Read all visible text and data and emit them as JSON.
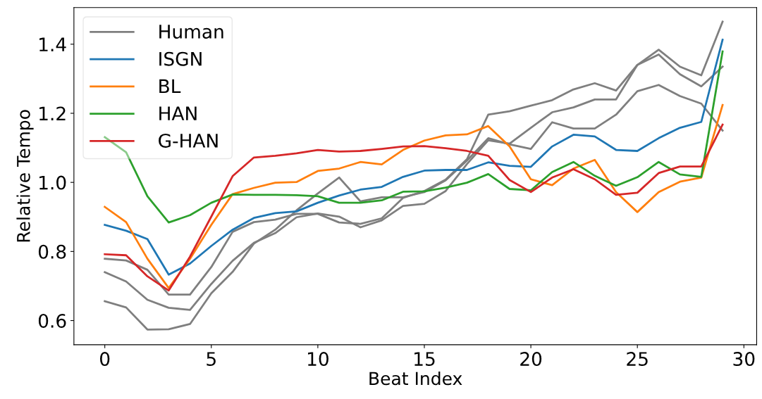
{
  "chart_data": {
    "type": "line",
    "xlabel": "Beat Index",
    "ylabel": "Relative Tempo",
    "x": [
      0,
      1,
      2,
      3,
      4,
      5,
      6,
      7,
      8,
      9,
      10,
      11,
      12,
      13,
      14,
      15,
      16,
      17,
      18,
      19,
      20,
      21,
      22,
      23,
      24,
      25,
      26,
      27,
      28,
      29
    ],
    "series": [
      {
        "name": "Human",
        "color": "#7f7f7f",
        "values": [
          0.779,
          0.774,
          0.747,
          0.675,
          0.675,
          0.755,
          0.857,
          0.885,
          0.892,
          0.909,
          0.909,
          0.884,
          0.88,
          0.896,
          0.955,
          0.975,
          1.008,
          1.067,
          1.196,
          1.206,
          1.222,
          1.238,
          1.269,
          1.287,
          1.266,
          1.34,
          1.384,
          1.335,
          1.31,
          1.465
        ]
      },
      {
        "color": "#7f7f7f",
        "values": [
          0.74,
          0.713,
          0.66,
          0.637,
          0.631,
          0.706,
          0.773,
          0.825,
          0.853,
          0.899,
          0.91,
          0.901,
          0.87,
          0.89,
          0.932,
          0.938,
          0.975,
          1.053,
          1.122,
          1.112,
          1.158,
          1.203,
          1.217,
          1.24,
          1.24,
          1.34,
          1.37,
          1.313,
          1.278,
          1.335
        ]
      },
      {
        "color": "#7f7f7f",
        "values": [
          0.656,
          0.638,
          0.574,
          0.575,
          0.59,
          0.679,
          0.741,
          0.823,
          0.863,
          0.919,
          0.968,
          1.014,
          0.945,
          0.957,
          0.957,
          0.972,
          1.006,
          1.063,
          1.128,
          1.11,
          1.097,
          1.174,
          1.156,
          1.156,
          1.196,
          1.264,
          1.282,
          1.25,
          1.228,
          1.15
        ]
      },
      {
        "name": "ISGN",
        "color": "#1f77b4",
        "values": [
          0.877,
          0.86,
          0.836,
          0.733,
          0.765,
          0.816,
          0.863,
          0.897,
          0.911,
          0.916,
          0.941,
          0.962,
          0.979,
          0.987,
          1.016,
          1.034,
          1.036,
          1.036,
          1.058,
          1.048,
          1.045,
          1.104,
          1.138,
          1.133,
          1.094,
          1.091,
          1.128,
          1.158,
          1.175,
          1.413
        ]
      },
      {
        "name": "BL",
        "color": "#ff7f0e",
        "values": [
          0.929,
          0.885,
          0.779,
          0.694,
          0.779,
          0.877,
          0.966,
          0.984,
          0.999,
          1.001,
          1.033,
          1.04,
          1.059,
          1.052,
          1.094,
          1.121,
          1.136,
          1.139,
          1.163,
          1.104,
          1.009,
          0.992,
          1.04,
          1.065,
          0.972,
          0.914,
          0.972,
          1.002,
          1.014,
          1.224
        ]
      },
      {
        "name": "HAN",
        "color": "#2ca02c",
        "values": [
          1.131,
          1.087,
          0.96,
          0.884,
          0.905,
          0.941,
          0.965,
          0.964,
          0.964,
          0.963,
          0.96,
          0.941,
          0.941,
          0.948,
          0.973,
          0.974,
          0.985,
          0.999,
          1.024,
          0.981,
          0.977,
          1.03,
          1.059,
          1.019,
          0.99,
          1.015,
          1.059,
          1.023,
          1.016,
          1.379
        ]
      },
      {
        "name": "G-HAN",
        "color": "#d62728",
        "values": [
          0.792,
          0.789,
          0.728,
          0.687,
          0.785,
          0.901,
          1.018,
          1.072,
          1.077,
          1.084,
          1.094,
          1.089,
          1.091,
          1.097,
          1.104,
          1.105,
          1.099,
          1.091,
          1.077,
          1.007,
          0.972,
          1.014,
          1.038,
          1.009,
          0.964,
          0.97,
          1.027,
          1.046,
          1.046,
          1.167
        ]
      }
    ],
    "xlim": [
      -1.45,
      30.6
    ],
    "xticks": [
      0,
      5,
      10,
      15,
      20,
      25,
      30
    ],
    "ylim": [
      0.53,
      1.506
    ],
    "yticks": [
      0.6,
      0.8,
      {
        "value": 1.0,
        "label": "1.0"
      },
      1.2,
      1.4
    ],
    "grid": false,
    "legend": "top left"
  }
}
